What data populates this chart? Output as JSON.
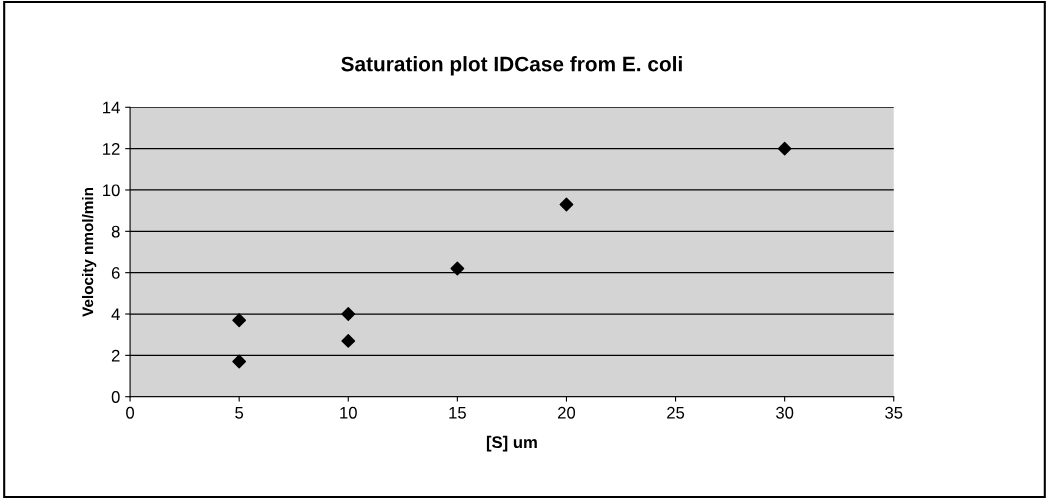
{
  "chart_data": {
    "type": "scatter",
    "title": "Saturation plot IDCase from E. coli",
    "xlabel": "[S] um",
    "ylabel": "Velocity nmol/min",
    "x": [
      5,
      5,
      10,
      10,
      15,
      20,
      30
    ],
    "values": [
      3.7,
      1.7,
      4.0,
      2.7,
      6.2,
      9.3,
      12.0
    ],
    "color": "#000000",
    "marker": "diamond",
    "xlim": [
      0,
      35
    ],
    "xticks": [
      0,
      5,
      10,
      15,
      20,
      25,
      30,
      35
    ],
    "ylim": [
      0,
      14
    ],
    "yticks": [
      0,
      2,
      4,
      6,
      8,
      10,
      12,
      14
    ],
    "grid": "y",
    "legend": false
  }
}
